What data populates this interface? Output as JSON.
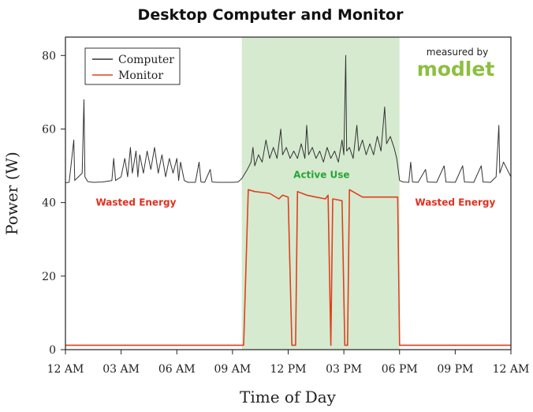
{
  "chart_data": {
    "type": "line",
    "title": "Desktop Computer and Monitor",
    "xlabel": "Time of Day",
    "ylabel": "Power (W)",
    "xlim": [
      0,
      24
    ],
    "ylim": [
      0,
      85
    ],
    "x_ticks": [
      {
        "value": 0,
        "label": "12 AM"
      },
      {
        "value": 3,
        "label": "03 AM"
      },
      {
        "value": 6,
        "label": "06 AM"
      },
      {
        "value": 9,
        "label": "09 AM"
      },
      {
        "value": 12,
        "label": "12 PM"
      },
      {
        "value": 15,
        "label": "03 PM"
      },
      {
        "value": 18,
        "label": "06 PM"
      },
      {
        "value": 21,
        "label": "09 PM"
      },
      {
        "value": 24,
        "label": "12 AM"
      }
    ],
    "y_ticks": [
      {
        "value": 0,
        "label": "0"
      },
      {
        "value": 20,
        "label": "20"
      },
      {
        "value": 40,
        "label": "40"
      },
      {
        "value": 60,
        "label": "60"
      },
      {
        "value": 80,
        "label": "80"
      }
    ],
    "grid": false,
    "legend_position": "top-left",
    "shaded_region": {
      "x_start": 9.5,
      "x_end": 18.0,
      "label": "Active Use",
      "color": "#d6ead0"
    },
    "annotations": [
      {
        "text": "Wasted Energy",
        "x": 3.8,
        "y": 40,
        "color": "#e0301e"
      },
      {
        "text": "Wasted Energy",
        "x": 21.0,
        "y": 40,
        "color": "#e0301e"
      },
      {
        "text": "Active Use",
        "x": 13.8,
        "y": 47.5,
        "color": "#27a535"
      }
    ],
    "brand": {
      "small_text": "measured by",
      "big_text": "modlet",
      "color": "#8cbf3f"
    },
    "series": [
      {
        "name": "Computer",
        "color": "#333333",
        "points": [
          [
            0.0,
            45.4
          ],
          [
            0.2,
            45.5
          ],
          [
            0.45,
            57
          ],
          [
            0.5,
            46
          ],
          [
            0.7,
            47
          ],
          [
            0.9,
            48
          ],
          [
            1.0,
            68
          ],
          [
            1.05,
            47
          ],
          [
            1.2,
            45.7
          ],
          [
            1.5,
            45.5
          ],
          [
            2.0,
            45.6
          ],
          [
            2.5,
            46
          ],
          [
            2.6,
            52
          ],
          [
            2.7,
            46
          ],
          [
            3.0,
            47
          ],
          [
            3.2,
            52
          ],
          [
            3.35,
            47
          ],
          [
            3.5,
            55
          ],
          [
            3.6,
            48
          ],
          [
            3.8,
            54
          ],
          [
            3.9,
            47
          ],
          [
            4.0,
            53
          ],
          [
            4.2,
            48
          ],
          [
            4.4,
            54
          ],
          [
            4.6,
            49
          ],
          [
            4.8,
            55
          ],
          [
            5.0,
            48
          ],
          [
            5.2,
            53
          ],
          [
            5.4,
            47
          ],
          [
            5.6,
            52
          ],
          [
            5.8,
            48
          ],
          [
            6.0,
            52
          ],
          [
            6.1,
            46
          ],
          [
            6.2,
            51
          ],
          [
            6.4,
            46
          ],
          [
            6.6,
            45.5
          ],
          [
            7.0,
            45.5
          ],
          [
            7.2,
            51
          ],
          [
            7.3,
            45.6
          ],
          [
            7.5,
            45.5
          ],
          [
            7.8,
            49
          ],
          [
            7.9,
            45.6
          ],
          [
            8.2,
            45.5
          ],
          [
            8.6,
            45.5
          ],
          [
            9.0,
            45.5
          ],
          [
            9.3,
            45.6
          ],
          [
            9.5,
            46.5
          ],
          [
            9.8,
            49
          ],
          [
            10.0,
            51
          ],
          [
            10.1,
            55
          ],
          [
            10.2,
            50
          ],
          [
            10.4,
            53
          ],
          [
            10.6,
            51
          ],
          [
            10.8,
            57
          ],
          [
            11.0,
            52
          ],
          [
            11.2,
            55
          ],
          [
            11.4,
            52
          ],
          [
            11.6,
            60
          ],
          [
            11.7,
            53
          ],
          [
            11.9,
            55
          ],
          [
            12.1,
            52
          ],
          [
            12.3,
            54
          ],
          [
            12.5,
            52
          ],
          [
            12.7,
            56
          ],
          [
            12.9,
            52
          ],
          [
            13.0,
            61
          ],
          [
            13.1,
            53
          ],
          [
            13.3,
            55
          ],
          [
            13.5,
            52
          ],
          [
            13.7,
            54
          ],
          [
            13.9,
            51
          ],
          [
            14.1,
            55
          ],
          [
            14.3,
            52
          ],
          [
            14.5,
            54
          ],
          [
            14.7,
            51
          ],
          [
            14.9,
            57
          ],
          [
            15.0,
            53
          ],
          [
            15.1,
            80
          ],
          [
            15.15,
            54
          ],
          [
            15.3,
            55
          ],
          [
            15.5,
            52
          ],
          [
            15.7,
            61
          ],
          [
            15.8,
            54
          ],
          [
            16.0,
            57
          ],
          [
            16.2,
            53
          ],
          [
            16.4,
            56
          ],
          [
            16.6,
            53
          ],
          [
            16.8,
            58
          ],
          [
            17.0,
            54
          ],
          [
            17.2,
            66
          ],
          [
            17.3,
            56
          ],
          [
            17.5,
            58
          ],
          [
            17.7,
            55
          ],
          [
            17.85,
            52
          ],
          [
            18.0,
            46
          ],
          [
            18.2,
            45.6
          ],
          [
            18.5,
            45.5
          ],
          [
            18.6,
            51
          ],
          [
            18.7,
            45.6
          ],
          [
            19.0,
            45.5
          ],
          [
            19.4,
            49
          ],
          [
            19.5,
            45.6
          ],
          [
            20.0,
            45.5
          ],
          [
            20.4,
            50
          ],
          [
            20.5,
            45.6
          ],
          [
            21.0,
            45.5
          ],
          [
            21.4,
            50
          ],
          [
            21.5,
            45.6
          ],
          [
            22.0,
            45.5
          ],
          [
            22.4,
            50
          ],
          [
            22.5,
            45.6
          ],
          [
            22.9,
            45.5
          ],
          [
            23.2,
            47
          ],
          [
            23.35,
            61
          ],
          [
            23.4,
            48
          ],
          [
            23.6,
            51
          ],
          [
            23.8,
            49
          ],
          [
            24.0,
            47
          ]
        ]
      },
      {
        "name": "Monitor",
        "color": "#e0401e",
        "points": [
          [
            0.0,
            1.2
          ],
          [
            9.6,
            1.2
          ],
          [
            9.85,
            43.5
          ],
          [
            10.2,
            43
          ],
          [
            11.0,
            42.5
          ],
          [
            11.5,
            41
          ],
          [
            11.7,
            42
          ],
          [
            12.0,
            41.5
          ],
          [
            12.2,
            1.2
          ],
          [
            12.4,
            1.2
          ],
          [
            12.5,
            43
          ],
          [
            13.0,
            42
          ],
          [
            13.5,
            41.5
          ],
          [
            14.0,
            41
          ],
          [
            14.15,
            42
          ],
          [
            14.3,
            1.2
          ],
          [
            14.4,
            41
          ],
          [
            14.9,
            40.5
          ],
          [
            15.05,
            1.2
          ],
          [
            15.2,
            1.2
          ],
          [
            15.3,
            43.5
          ],
          [
            16.0,
            41.5
          ],
          [
            17.0,
            41.5
          ],
          [
            17.9,
            41.5
          ],
          [
            18.0,
            1.2
          ],
          [
            24.0,
            1.2
          ]
        ]
      }
    ]
  }
}
